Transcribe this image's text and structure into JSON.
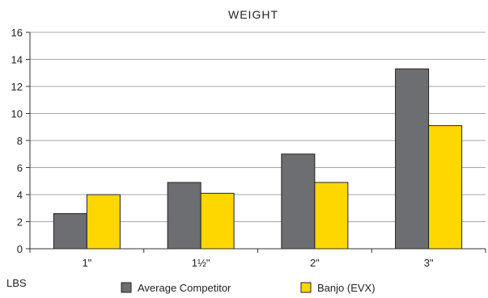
{
  "chart_data": {
    "type": "bar",
    "title": "WEIGHT",
    "ylabel": "LBS",
    "xlabel": "",
    "categories": [
      "1\"",
      "1½\"",
      "2\"",
      "3\""
    ],
    "ylim": [
      0,
      16
    ],
    "yticks": [
      0,
      2,
      4,
      6,
      8,
      10,
      12,
      14,
      16
    ],
    "grid": true,
    "legend_position": "bottom",
    "series": [
      {
        "name": "Average Competitor",
        "color": "#6d6e71",
        "values": [
          2.6,
          4.9,
          7.0,
          13.3
        ]
      },
      {
        "name": "Banjo (EVX)",
        "color": "#ffd700",
        "values": [
          4.0,
          4.1,
          4.9,
          9.1
        ]
      }
    ]
  }
}
